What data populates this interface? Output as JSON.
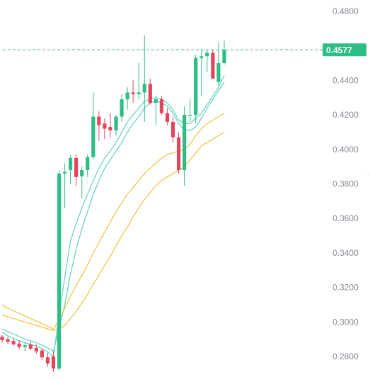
{
  "chart_data": {
    "type": "candlestick",
    "y_axis": {
      "position": "right",
      "ylim": [
        0.272,
        0.49
      ],
      "ticks": [
        0.28,
        0.3,
        0.32,
        0.34,
        0.36,
        0.38,
        0.4,
        0.42,
        0.44,
        0.46,
        0.48
      ],
      "tick_labels": [
        "0.2800",
        "0.3000",
        "0.3200",
        "0.3400",
        "0.3600",
        "0.3800",
        "0.4000",
        "0.4200",
        "0.4400",
        "",
        "0.4800"
      ]
    },
    "current_price": {
      "value": 0.4577,
      "label": "0.4577",
      "line_style": "dashed"
    },
    "colors": {
      "up": "#2ebd85",
      "down": "#e0475d",
      "ma_fast": "#5fd3c0",
      "ma_slow": "#f0c03e",
      "price_tag": "#2ebd85",
      "tick_text": "#8a8f99",
      "grid": "none"
    },
    "candles": [
      {
        "o": 0.2915,
        "h": 0.2925,
        "l": 0.288,
        "c": 0.2895
      },
      {
        "o": 0.29,
        "h": 0.2915,
        "l": 0.287,
        "c": 0.2885
      },
      {
        "o": 0.289,
        "h": 0.2905,
        "l": 0.286,
        "c": 0.287
      },
      {
        "o": 0.2875,
        "h": 0.2895,
        "l": 0.284,
        "c": 0.2855
      },
      {
        "o": 0.2855,
        "h": 0.288,
        "l": 0.283,
        "c": 0.2865
      },
      {
        "o": 0.287,
        "h": 0.2885,
        "l": 0.2835,
        "c": 0.2845
      },
      {
        "o": 0.285,
        "h": 0.287,
        "l": 0.2815,
        "c": 0.283
      },
      {
        "o": 0.2835,
        "h": 0.285,
        "l": 0.278,
        "c": 0.2795
      },
      {
        "o": 0.2795,
        "h": 0.282,
        "l": 0.274,
        "c": 0.276
      },
      {
        "o": 0.28,
        "h": 0.283,
        "l": 0.271,
        "c": 0.273
      },
      {
        "o": 0.273,
        "h": 0.388,
        "l": 0.272,
        "c": 0.386
      },
      {
        "o": 0.386,
        "h": 0.392,
        "l": 0.366,
        "c": 0.387
      },
      {
        "o": 0.388,
        "h": 0.3965,
        "l": 0.38,
        "c": 0.395
      },
      {
        "o": 0.395,
        "h": 0.397,
        "l": 0.379,
        "c": 0.384
      },
      {
        "o": 0.3845,
        "h": 0.39,
        "l": 0.372,
        "c": 0.388
      },
      {
        "o": 0.388,
        "h": 0.397,
        "l": 0.384,
        "c": 0.3955
      },
      {
        "o": 0.3955,
        "h": 0.433,
        "l": 0.394,
        "c": 0.419
      },
      {
        "o": 0.419,
        "h": 0.422,
        "l": 0.405,
        "c": 0.414
      },
      {
        "o": 0.415,
        "h": 0.418,
        "l": 0.406,
        "c": 0.412
      },
      {
        "o": 0.413,
        "h": 0.421,
        "l": 0.407,
        "c": 0.411
      },
      {
        "o": 0.411,
        "h": 0.42,
        "l": 0.408,
        "c": 0.419
      },
      {
        "o": 0.419,
        "h": 0.432,
        "l": 0.416,
        "c": 0.429
      },
      {
        "o": 0.429,
        "h": 0.436,
        "l": 0.423,
        "c": 0.433
      },
      {
        "o": 0.433,
        "h": 0.44,
        "l": 0.427,
        "c": 0.432
      },
      {
        "o": 0.432,
        "h": 0.45,
        "l": 0.429,
        "c": 0.433
      },
      {
        "o": 0.433,
        "h": 0.466,
        "l": 0.416,
        "c": 0.438
      },
      {
        "o": 0.438,
        "h": 0.441,
        "l": 0.426,
        "c": 0.427
      },
      {
        "o": 0.427,
        "h": 0.431,
        "l": 0.414,
        "c": 0.429
      },
      {
        "o": 0.429,
        "h": 0.431,
        "l": 0.42,
        "c": 0.421
      },
      {
        "o": 0.421,
        "h": 0.424,
        "l": 0.414,
        "c": 0.416
      },
      {
        "o": 0.416,
        "h": 0.419,
        "l": 0.404,
        "c": 0.407
      },
      {
        "o": 0.407,
        "h": 0.41,
        "l": 0.386,
        "c": 0.388
      },
      {
        "o": 0.388,
        "h": 0.425,
        "l": 0.379,
        "c": 0.42
      },
      {
        "o": 0.42,
        "h": 0.429,
        "l": 0.416,
        "c": 0.42
      },
      {
        "o": 0.42,
        "h": 0.455,
        "l": 0.415,
        "c": 0.453
      },
      {
        "o": 0.453,
        "h": 0.458,
        "l": 0.431,
        "c": 0.454
      },
      {
        "o": 0.454,
        "h": 0.458,
        "l": 0.445,
        "c": 0.456
      },
      {
        "o": 0.456,
        "h": 0.458,
        "l": 0.441,
        "c": 0.441
      },
      {
        "o": 0.439,
        "h": 0.462,
        "l": 0.437,
        "c": 0.45
      },
      {
        "o": 0.45,
        "h": 0.463,
        "l": 0.449,
        "c": 0.4577
      }
    ],
    "ma_series": [
      {
        "color_key": "ma_fast",
        "values": [
          0.294,
          0.292,
          0.2905,
          0.289,
          0.288,
          0.287,
          0.286,
          0.2845,
          0.2825,
          0.28,
          0.304,
          0.326,
          0.347,
          0.357,
          0.366,
          0.374,
          0.382,
          0.389,
          0.395,
          0.399,
          0.404,
          0.41,
          0.416,
          0.42,
          0.424,
          0.428,
          0.429,
          0.43,
          0.429,
          0.427,
          0.423,
          0.417,
          0.415,
          0.415,
          0.418,
          0.421,
          0.426,
          0.431,
          0.436,
          0.443
        ]
      },
      {
        "color_key": "ma_fast",
        "values": [
          0.296,
          0.2945,
          0.293,
          0.2915,
          0.29,
          0.289,
          0.288,
          0.2865,
          0.285,
          0.283,
          0.296,
          0.31,
          0.328,
          0.342,
          0.354,
          0.364,
          0.374,
          0.382,
          0.389,
          0.394,
          0.399,
          0.404,
          0.41,
          0.415,
          0.419,
          0.424,
          0.427,
          0.428,
          0.427,
          0.425,
          0.421,
          0.415,
          0.411,
          0.411,
          0.413,
          0.418,
          0.424,
          0.429,
          0.434,
          0.439
        ]
      },
      {
        "color_key": "ma_slow",
        "values": [
          0.31,
          0.308,
          0.3065,
          0.305,
          0.3035,
          0.302,
          0.3005,
          0.299,
          0.2975,
          0.296,
          0.301,
          0.308,
          0.315,
          0.321,
          0.327,
          0.333,
          0.34,
          0.346,
          0.352,
          0.358,
          0.364,
          0.369,
          0.374,
          0.378,
          0.382,
          0.386,
          0.389,
          0.392,
          0.395,
          0.397,
          0.398,
          0.399,
          0.4,
          0.403,
          0.408,
          0.412,
          0.415,
          0.417,
          0.419,
          0.421
        ]
      },
      {
        "color_key": "ma_slow",
        "values": [
          0.304,
          0.303,
          0.302,
          0.301,
          0.3,
          0.299,
          0.298,
          0.297,
          0.296,
          0.295,
          0.296,
          0.298,
          0.302,
          0.306,
          0.311,
          0.316,
          0.322,
          0.327,
          0.333,
          0.338,
          0.344,
          0.35,
          0.355,
          0.361,
          0.366,
          0.371,
          0.375,
          0.379,
          0.382,
          0.384,
          0.386,
          0.388,
          0.39,
          0.394,
          0.398,
          0.402,
          0.404,
          0.406,
          0.408,
          0.41
        ]
      }
    ]
  }
}
